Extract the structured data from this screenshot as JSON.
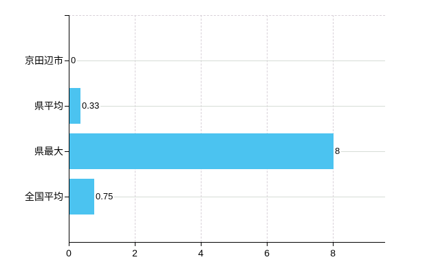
{
  "chart": {
    "background_color": "#ffffff",
    "bar_color": "#4bc3f0",
    "axis_color": "#000000",
    "solid_grid_color": "#d6dcd6",
    "dashed_grid_color": "#d8d0d8",
    "text_color": "#000000"
  },
  "chart_data": {
    "type": "bar",
    "orientation": "horizontal",
    "title": "",
    "xlabel": "",
    "ylabel": "",
    "categories": [
      "京田辺市",
      "県平均",
      "県最大",
      "全国平均"
    ],
    "values": [
      0,
      0.33,
      8,
      0.75
    ],
    "value_labels": [
      "0",
      "0.33",
      "8",
      "0.75"
    ],
    "x_ticks": [
      0,
      2,
      4,
      6,
      8
    ],
    "x_tick_labels": [
      "0",
      "2",
      "4",
      "6",
      "8"
    ],
    "xlim": [
      0,
      9.58
    ],
    "grid": true,
    "legend": false
  }
}
